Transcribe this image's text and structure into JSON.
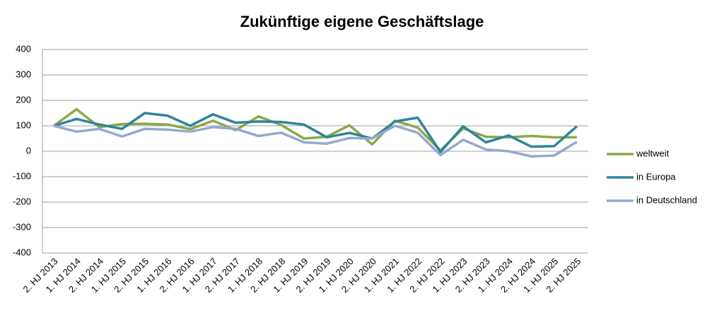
{
  "chart_data": {
    "type": "line",
    "title": "Zukünftige eigene Geschäftslage",
    "categories": [
      "2. HJ 2013",
      "1. HJ 2014",
      "2. HJ 2014",
      "1. HJ 2015",
      "2. HJ 2015",
      "1. HJ 2016",
      "2. HJ 2016",
      "1. HJ 2017",
      "2. HJ 2017",
      "1. HJ 2018",
      "2. HJ 2018",
      "1. HJ 2019",
      "2. HJ 2019",
      "1. HJ 2020",
      "2. HJ 2020",
      "1. HJ 2021",
      "1. HJ 2022",
      "2. HJ 2022",
      "1. HJ 2023",
      "2. HJ 2023",
      "1. HJ 2024",
      "2. HJ 2024",
      "1. HJ 2025",
      "2. HJ 2025"
    ],
    "series": [
      {
        "name": "weltweit",
        "color": "#8aa84a",
        "values": [
          100,
          165,
          95,
          107,
          108,
          105,
          87,
          120,
          83,
          137,
          103,
          50,
          57,
          102,
          27,
          120,
          93,
          3,
          90,
          57,
          55,
          60,
          55,
          55
        ]
      },
      {
        "name": "in Europa",
        "color": "#31849b",
        "values": [
          100,
          127,
          105,
          88,
          150,
          140,
          100,
          145,
          112,
          117,
          115,
          105,
          55,
          72,
          50,
          117,
          132,
          -3,
          98,
          35,
          62,
          18,
          20,
          98
        ]
      },
      {
        "name": "in Deutschland",
        "color": "#95a8d0",
        "values": [
          100,
          77,
          88,
          58,
          88,
          85,
          77,
          95,
          88,
          60,
          73,
          35,
          30,
          52,
          50,
          100,
          73,
          -15,
          45,
          7,
          0,
          -20,
          -17,
          37
        ]
      }
    ],
    "ylim": [
      -400,
      400
    ],
    "yticks": [
      -400,
      -300,
      -200,
      -100,
      0,
      100,
      200,
      300,
      400
    ],
    "grid": true,
    "legend": "right"
  }
}
